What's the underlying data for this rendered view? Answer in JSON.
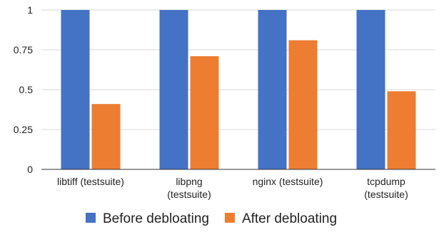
{
  "chart_data": {
    "type": "bar",
    "title": "",
    "xlabel": "",
    "ylabel": "",
    "categories": [
      [
        "libtiff (testsuite)"
      ],
      [
        "libpng",
        "(testsuite)"
      ],
      [
        "nginx (testsuite)"
      ],
      [
        "tcpdump",
        "(testsuite)"
      ]
    ],
    "series": [
      {
        "name": "Before debloating",
        "color": "#4472c4",
        "values": [
          1,
          1,
          1,
          1
        ]
      },
      {
        "name": "After debloating",
        "color": "#ed7d31",
        "values": [
          0.41,
          0.71,
          0.81,
          0.49
        ]
      }
    ],
    "ylim": [
      0,
      1
    ],
    "yticks": [
      "0",
      "0.25",
      "0.5",
      "0.75",
      "1"
    ],
    "ytick_values": [
      0,
      0.25,
      0.5,
      0.75,
      1
    ],
    "grid": true,
    "legend_position": "bottom"
  }
}
